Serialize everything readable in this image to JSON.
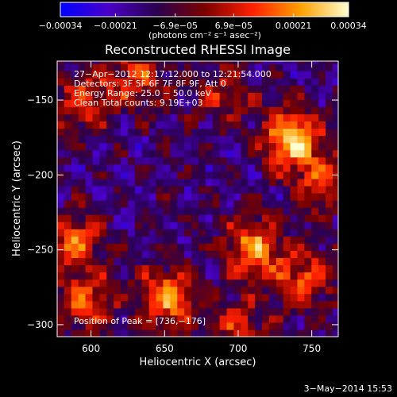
{
  "chart_data": {
    "type": "heatmap",
    "title": "Reconstructed RHESSI Image",
    "xlabel": "Heliocentric X (arcsec)",
    "ylabel": "Heliocentric Y (arcsec)",
    "xlim": [
      577,
      768
    ],
    "ylim": [
      -308,
      -124
    ],
    "x_ticks": [
      600,
      650,
      700,
      750
    ],
    "x_tick_labels": [
      "600",
      "650",
      "700",
      "750"
    ],
    "y_ticks": [
      -150,
      -200,
      -250,
      -300
    ],
    "y_tick_labels": [
      "−150",
      "−200",
      "−250",
      "−300"
    ],
    "colorbar": {
      "range": [
        -0.00034,
        0.00034
      ],
      "ticks": [
        -0.00034,
        -0.00021,
        -6.9e-05,
        6.9e-05,
        0.00021,
        0.00034
      ],
      "tick_labels": [
        "−0.00034",
        "−0.00021",
        "−6.9e−05",
        "6.9e−05",
        "0.00021",
        "0.00034"
      ],
      "unit_label": "(photons cm⁻² s⁻¹ asec⁻²)",
      "colors": [
        "#0000ff",
        "#4a00c8",
        "#2a0050",
        "#7a0000",
        "#ff2000",
        "#ffa000",
        "#ffffd0"
      ]
    },
    "annotations": [
      "27−Apr−2012 12:17:12.000 to 12:21:54.000",
      "Detectors: 3F 5F 6F 7F 8F 9F, Att 0",
      "Energy Range: 25.0 − 50.0 keV",
      "Clean   Total counts: 9.19E+03"
    ],
    "peak_label": "Position of Peak = [736,−176]",
    "peak": [
      736,
      -176
    ],
    "sources": [
      {
        "x": 736,
        "y": -176,
        "peak": 1.0
      },
      {
        "x": 710,
        "y": -248,
        "peak": 0.78
      },
      {
        "x": 745,
        "y": -270,
        "peak": 0.62
      },
      {
        "x": 652,
        "y": -282,
        "peak": 0.8
      },
      {
        "x": 598,
        "y": -285,
        "peak": 0.6
      },
      {
        "x": 595,
        "y": -150,
        "peak": 0.55
      },
      {
        "x": 632,
        "y": -135,
        "peak": 0.55
      },
      {
        "x": 588,
        "y": -245,
        "peak": 0.65
      },
      {
        "x": 700,
        "y": -300,
        "peak": 0.45
      },
      {
        "x": 758,
        "y": -205,
        "peak": 0.55
      },
      {
        "x": 690,
        "y": -145,
        "peak": 0.4
      }
    ],
    "date_stamp": "3−May−2014 15:53"
  }
}
